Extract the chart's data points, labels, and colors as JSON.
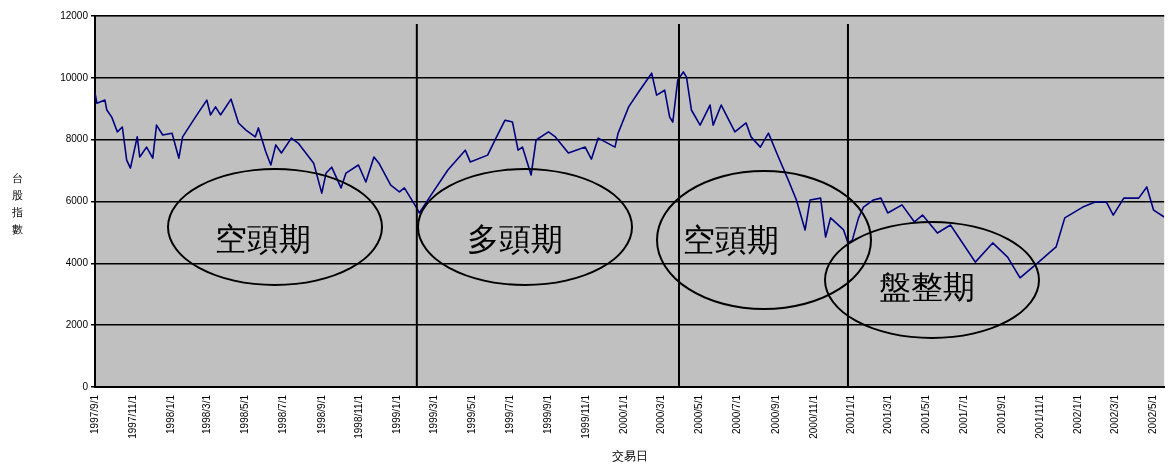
{
  "chart_data": {
    "type": "line",
    "xlabel": "交易日",
    "ylabel": "台股指數",
    "x": [
      "1997-09-01",
      "1997-09-04",
      "1997-09-17",
      "1997-09-20",
      "1997-09-28",
      "1997-10-07",
      "1997-10-15",
      "1997-10-22",
      "1997-10-28",
      "1997-11-08",
      "1997-11-12",
      "1997-11-23",
      "1997-12-03",
      "1997-12-09",
      "1997-12-19",
      "1998-01-03",
      "1998-01-14",
      "1998-01-20",
      "1998-02-12",
      "1998-02-28",
      "1998-03-06",
      "1998-03-14",
      "1998-03-22",
      "1998-04-08",
      "1998-04-20",
      "1998-05-02",
      "1998-05-17",
      "1998-05-22",
      "1998-06-03",
      "1998-06-11",
      "1998-06-19",
      "1998-06-28",
      "1998-07-14",
      "1998-07-25",
      "1998-08-19",
      "1998-09-01",
      "1998-09-08",
      "1998-09-17",
      "1998-10-02",
      "1998-10-10",
      "1998-10-30",
      "1998-11-11",
      "1998-11-24",
      "1998-12-02",
      "1998-12-21",
      "1999-01-04",
      "1999-01-12",
      "1999-01-31",
      "1999-02-05",
      "1999-02-26",
      "1999-03-23",
      "1999-04-20",
      "1999-04-28",
      "1999-05-26",
      "1999-06-07",
      "1999-06-23",
      "1999-07-05",
      "1999-07-14",
      "1999-07-21",
      "1999-08-04",
      "1999-08-12",
      "1999-09-01",
      "1999-09-12",
      "1999-10-03",
      "1999-10-30",
      "1999-11-09",
      "1999-11-20",
      "1999-12-17",
      "1999-12-22",
      "2000-01-08",
      "2000-01-24",
      "2000-02-14",
      "2000-02-22",
      "2000-03-06",
      "2000-03-14",
      "2000-03-19",
      "2000-03-27",
      "2000-04-05",
      "2000-04-10",
      "2000-04-18",
      "2000-05-02",
      "2000-05-18",
      "2000-05-23",
      "2000-06-05",
      "2000-06-27",
      "2000-07-15",
      "2000-07-23",
      "2000-08-07",
      "2000-08-20",
      "2000-09-05",
      "2000-09-21",
      "2000-10-04",
      "2000-10-18",
      "2000-10-26",
      "2000-11-12",
      "2000-11-20",
      "2000-11-28",
      "2000-12-19",
      "2000-12-26",
      "2001-01-02",
      "2001-01-12",
      "2001-01-20",
      "2001-02-05",
      "2001-02-17",
      "2001-02-28",
      "2001-03-23",
      "2001-04-12",
      "2001-04-25",
      "2001-05-19",
      "2001-06-09",
      "2001-07-19",
      "2001-08-16",
      "2001-09-09",
      "2001-09-29",
      "2001-10-27",
      "2001-11-26",
      "2001-12-10",
      "2002-01-08",
      "2002-01-28",
      "2002-02-15",
      "2002-02-26",
      "2002-03-15",
      "2002-04-08",
      "2002-04-21",
      "2002-05-02",
      "2002-05-19"
    ],
    "series": [
      {
        "color": "#000080",
        "values": [
          9510,
          9180,
          9280,
          8960,
          8730,
          8250,
          8410,
          7340,
          7080,
          8090,
          7440,
          7760,
          7400,
          8470,
          8150,
          8210,
          7400,
          8090,
          8800,
          9280,
          8800,
          9060,
          8800,
          9310,
          8540,
          8310,
          8090,
          8380,
          7600,
          7180,
          7830,
          7570,
          8050,
          7890,
          7240,
          6270,
          6920,
          7110,
          6440,
          6920,
          7180,
          6630,
          7440,
          7240,
          6530,
          6310,
          6440,
          5820,
          5630,
          6270,
          7020,
          7660,
          7280,
          7500,
          7990,
          8630,
          8570,
          7660,
          7760,
          6860,
          7990,
          8250,
          8090,
          7570,
          7760,
          7370,
          8050,
          7760,
          8210,
          9060,
          9540,
          10150,
          9440,
          9600,
          8730,
          8570,
          9930,
          10190,
          10030,
          8960,
          8470,
          9120,
          8470,
          9120,
          8250,
          8540,
          8090,
          7760,
          8210,
          7440,
          6690,
          6050,
          5080,
          6050,
          6110,
          4850,
          5470,
          5080,
          4660,
          4750,
          5470,
          5820,
          6050,
          6110,
          5630,
          5890,
          5340,
          5560,
          4980,
          5240,
          4040,
          4660,
          4200,
          3530,
          4010,
          4530,
          5470,
          5820,
          5980,
          5980,
          5560,
          6110,
          6110,
          6470,
          5720,
          5500
        ]
      }
    ],
    "xlim": [
      "1997-09-01",
      "2002-05-19"
    ],
    "xticks": [
      {
        "value": "1997-09-01",
        "label": "1997/9/1"
      },
      {
        "value": "1997-11-01",
        "label": "1997/11/1"
      },
      {
        "value": "1998-01-01",
        "label": "1998/1/1"
      },
      {
        "value": "1998-03-01",
        "label": "1998/3/1"
      },
      {
        "value": "1998-05-01",
        "label": "1998/5/1"
      },
      {
        "value": "1998-07-01",
        "label": "1998/7/1"
      },
      {
        "value": "1998-09-01",
        "label": "1998/9/1"
      },
      {
        "value": "1998-11-01",
        "label": "1998/11/1"
      },
      {
        "value": "1999-01-01",
        "label": "1999/1/1"
      },
      {
        "value": "1999-03-01",
        "label": "1999/3/1"
      },
      {
        "value": "1999-05-01",
        "label": "1999/5/1"
      },
      {
        "value": "1999-07-01",
        "label": "1999/7/1"
      },
      {
        "value": "1999-09-01",
        "label": "1999/9/1"
      },
      {
        "value": "1999-11-01",
        "label": "1999/11/1"
      },
      {
        "value": "2000-01-01",
        "label": "2000/1/1"
      },
      {
        "value": "2000-03-01",
        "label": "2000/3/1"
      },
      {
        "value": "2000-05-01",
        "label": "2000/5/1"
      },
      {
        "value": "2000-07-01",
        "label": "2000/7/1"
      },
      {
        "value": "2000-09-01",
        "label": "2000/9/1"
      },
      {
        "value": "2000-11-01",
        "label": "2000/11/1"
      },
      {
        "value": "2001-01-01",
        "label": "2001/1/1"
      },
      {
        "value": "2001-03-01",
        "label": "2001/3/1"
      },
      {
        "value": "2001-05-01",
        "label": "2001/5/1"
      },
      {
        "value": "2001-07-01",
        "label": "2001/7/1"
      },
      {
        "value": "2001-09-01",
        "label": "2001/9/1"
      },
      {
        "value": "2001-11-01",
        "label": "2001/11/1"
      },
      {
        "value": "2002-01-01",
        "label": "2002/1/1"
      },
      {
        "value": "2002-03-01",
        "label": "2002/3/1"
      },
      {
        "value": "2002-05-01",
        "label": "2002/5/1"
      }
    ],
    "ylim": [
      0,
      12000
    ],
    "yticks": [
      0,
      2000,
      4000,
      6000,
      8000,
      10000,
      12000
    ],
    "ref_lines": [
      {
        "axis": "x",
        "value": "1999-02-01",
        "color": "#000000"
      },
      {
        "axis": "x",
        "value": "2000-03-29",
        "color": "#000000"
      },
      {
        "axis": "x",
        "value": "2000-12-26",
        "color": "#000000"
      }
    ],
    "annotations": [
      "空頭期",
      "多頭期",
      "空頭期",
      "盤整期"
    ],
    "grid": "y",
    "legend": false,
    "marker": "none",
    "line_style": "solid"
  }
}
